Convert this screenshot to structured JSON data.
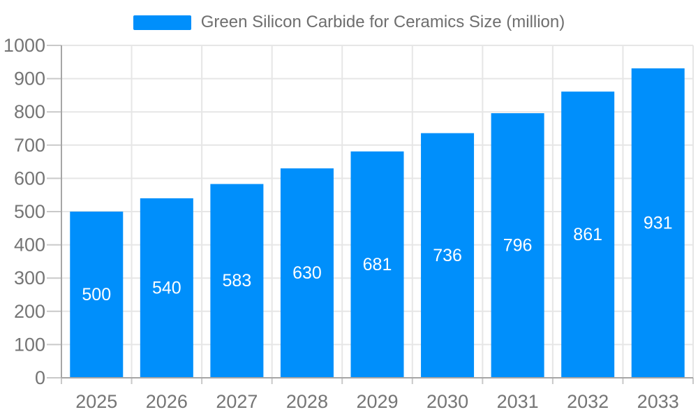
{
  "legend": {
    "label": "Green Silicon Carbide for Ceramics Size (million)"
  },
  "chart_data": {
    "type": "bar",
    "title": "Green Silicon Carbide for Ceramics Size (million)",
    "categories": [
      "2025",
      "2026",
      "2027",
      "2028",
      "2029",
      "2030",
      "2031",
      "2032",
      "2033"
    ],
    "series": [
      {
        "name": "Green Silicon Carbide for Ceramics Size (million)",
        "values": [
          500,
          540,
          583,
          630,
          681,
          736,
          796,
          861,
          931
        ]
      }
    ],
    "xlabel": "",
    "ylabel": "",
    "ylim": [
      0,
      1000
    ],
    "ytick_interval": 100,
    "yticks": [
      0,
      100,
      200,
      300,
      400,
      500,
      600,
      700,
      800,
      900,
      1000
    ],
    "grid": true,
    "value_labels_shown": true,
    "legend_position": "top-center",
    "colors": {
      "bar": "#008FFB",
      "value_label": "#FFFFFF",
      "axis_label": "#757575",
      "legend_label": "#6E6E6E",
      "grid_line": "#E6E6E6",
      "tick_line": "#C9C9C9",
      "axis_line": "#A6A6A6",
      "background": "#FFFFFF"
    }
  }
}
